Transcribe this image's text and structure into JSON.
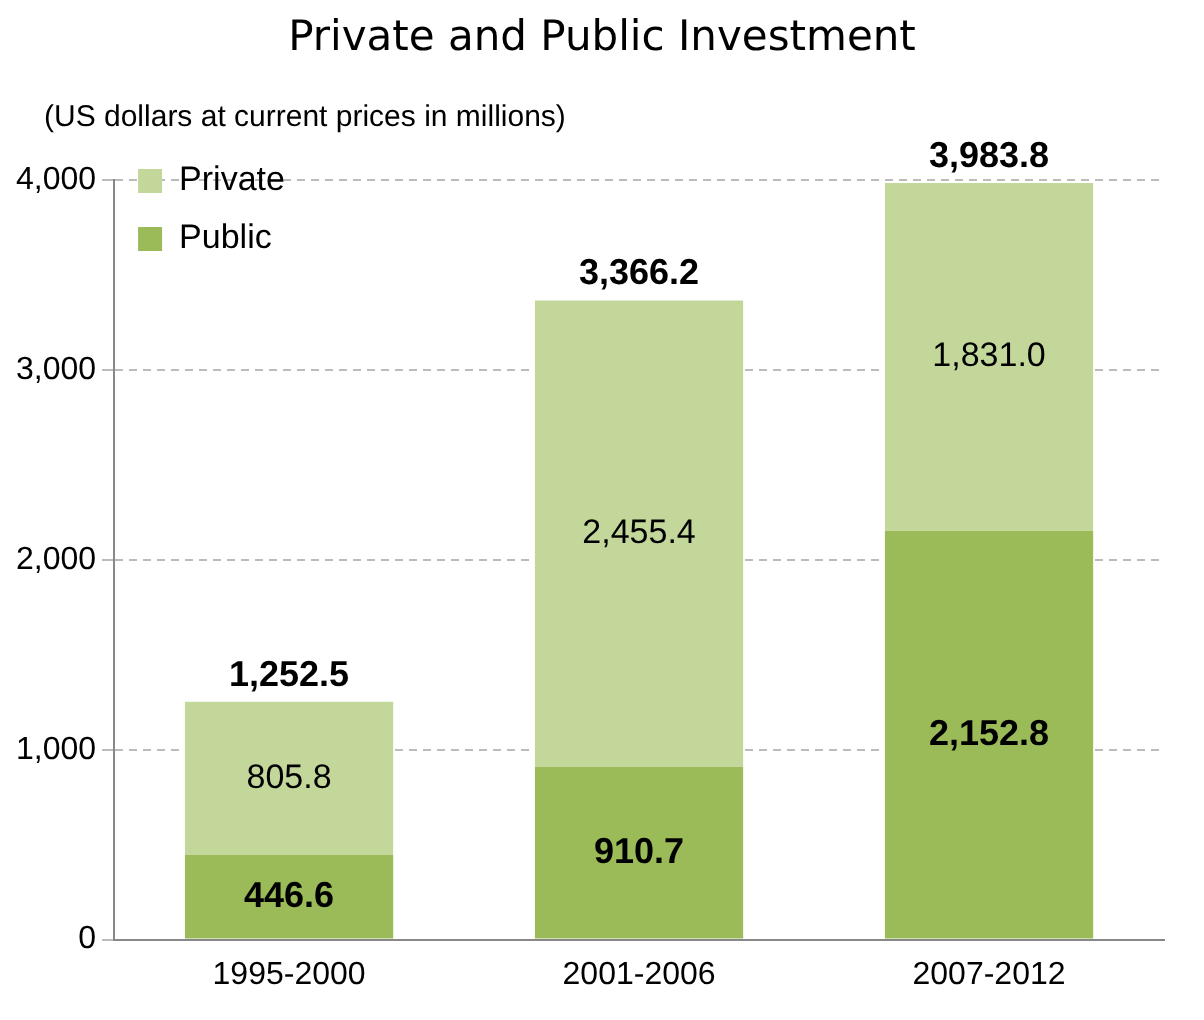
{
  "chart_data": {
    "type": "bar",
    "title": "Private and Public Investment",
    "subtitle": "(US dollars at current prices in millions)",
    "categories": [
      "1995-2000",
      "2001-2006",
      "2007-2012"
    ],
    "stacked": true,
    "series": [
      {
        "name": "Public",
        "color": "#9bbb59",
        "values": [
          446.6,
          910.7,
          2152.8
        ],
        "value_labels": [
          "446.6",
          "910.7",
          "2,152.8"
        ]
      },
      {
        "name": "Private",
        "color": "#c4d79b",
        "values": [
          805.8,
          2455.4,
          1831.0
        ],
        "value_labels": [
          "805.8",
          "2,455.4",
          "1,831.0"
        ]
      }
    ],
    "totals": [
      "1,252.5",
      "3,366.2",
      "3,983.8"
    ],
    "ylim": [
      0,
      4000
    ],
    "yticks": [
      {
        "value": 0,
        "label": "0"
      },
      {
        "value": 1000,
        "label": "1,000"
      },
      {
        "value": 2000,
        "label": "2,000"
      },
      {
        "value": 3000,
        "label": "3,000"
      },
      {
        "value": 4000,
        "label": "4,000"
      }
    ],
    "grid": "y",
    "legend": "top left"
  }
}
